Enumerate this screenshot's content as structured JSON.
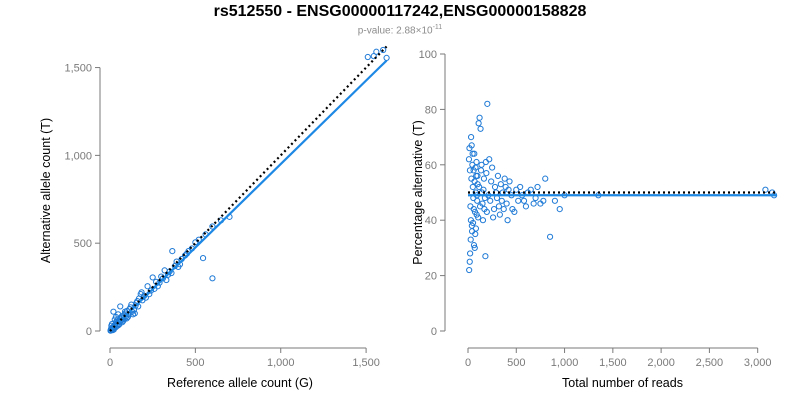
{
  "title": "rs512550 - ENSG00000117242,ENSG00000158828",
  "subtitle": {
    "prefix": "p-value: 2.88×10",
    "exponent": "-11"
  },
  "colors": {
    "point": "#1f7ad6",
    "fit": "#1e88e5",
    "expected": "#000000",
    "axis": "#7a7a7a"
  },
  "chart_data": [
    {
      "type": "scatter",
      "name": "allele-counts",
      "xlabel": "Reference allele count (G)",
      "ylabel": "Alternative allele count (T)",
      "xlim": [
        0,
        1640
      ],
      "ylim": [
        0,
        1600
      ],
      "xticks": [
        0,
        500,
        1000,
        1500
      ],
      "xtick_labels": [
        "0",
        "500",
        "1,000",
        "1,500"
      ],
      "yticks": [
        0,
        500,
        1000,
        1500
      ],
      "ytick_labels": [
        "0",
        "500",
        "1,000",
        "1,500"
      ],
      "fit_line": {
        "x": [
          0,
          1620
        ],
        "y": [
          0,
          1540
        ]
      },
      "expected_line": {
        "x": [
          0,
          1620
        ],
        "y": [
          0,
          1620
        ]
      },
      "points": [
        [
          1510,
          1560
        ],
        [
          1560,
          1590
        ],
        [
          1600,
          1600
        ],
        [
          1620,
          1555
        ],
        [
          1545,
          1565
        ],
        [
          600,
          300
        ],
        [
          700,
          650
        ],
        [
          545,
          415
        ],
        [
          365,
          455
        ],
        [
          330,
          290
        ],
        [
          400,
          365
        ],
        [
          300,
          310
        ],
        [
          250,
          305
        ],
        [
          220,
          255
        ],
        [
          280,
          255
        ],
        [
          170,
          185
        ],
        [
          180,
          210
        ],
        [
          155,
          160
        ],
        [
          200,
          200
        ],
        [
          120,
          135
        ],
        [
          130,
          110
        ],
        [
          100,
          115
        ],
        [
          90,
          100
        ],
        [
          80,
          90
        ],
        [
          70,
          75
        ],
        [
          60,
          70
        ],
        [
          50,
          55
        ],
        [
          40,
          45
        ],
        [
          30,
          30
        ],
        [
          25,
          20
        ],
        [
          20,
          25
        ],
        [
          15,
          10
        ],
        [
          10,
          15
        ],
        [
          5,
          5
        ],
        [
          35,
          50
        ],
        [
          45,
          30
        ],
        [
          55,
          40
        ],
        [
          65,
          60
        ],
        [
          75,
          65
        ],
        [
          85,
          70
        ],
        [
          95,
          85
        ],
        [
          110,
          95
        ],
        [
          140,
          120
        ],
        [
          150,
          145
        ],
        [
          160,
          170
        ],
        [
          190,
          175
        ],
        [
          210,
          190
        ],
        [
          230,
          210
        ],
        [
          260,
          240
        ],
        [
          270,
          280
        ],
        [
          290,
          275
        ],
        [
          310,
          300
        ],
        [
          340,
          320
        ],
        [
          350,
          340
        ],
        [
          380,
          370
        ],
        [
          420,
          410
        ],
        [
          440,
          430
        ],
        [
          460,
          455
        ],
        [
          480,
          470
        ],
        [
          500,
          505
        ],
        [
          20,
          110
        ],
        [
          60,
          140
        ],
        [
          35,
          80
        ],
        [
          12,
          40
        ],
        [
          8,
          30
        ],
        [
          28,
          65
        ],
        [
          48,
          95
        ],
        [
          16,
          5
        ],
        [
          22,
          8
        ],
        [
          3,
          2
        ],
        [
          6,
          12
        ],
        [
          42,
          60
        ],
        [
          52,
          35
        ],
        [
          72,
          50
        ],
        [
          88,
          110
        ],
        [
          105,
          80
        ],
        [
          125,
          150
        ],
        [
          145,
          100
        ],
        [
          165,
          140
        ],
        [
          185,
          220
        ],
        [
          240,
          230
        ],
        [
          320,
          345
        ],
        [
          360,
          330
        ],
        [
          390,
          395
        ],
        [
          410,
          380
        ],
        [
          450,
          440
        ],
        [
          520,
          520
        ],
        [
          560,
          550
        ],
        [
          600,
          595
        ],
        [
          650,
          630
        ],
        [
          18,
          18
        ],
        [
          26,
          32
        ],
        [
          34,
          22
        ],
        [
          44,
          38
        ],
        [
          58,
          52
        ],
        [
          68,
          82
        ],
        [
          78,
          58
        ],
        [
          98,
          72
        ],
        [
          115,
          125
        ],
        [
          135,
          95
        ]
      ]
    },
    {
      "type": "scatter",
      "name": "percentage-alternative",
      "xlabel": "Total number of reads",
      "ylabel": "Percentage alternative (T)",
      "xlim": [
        0,
        3200
      ],
      "ylim": [
        0,
        100
      ],
      "xticks": [
        0,
        500,
        1000,
        1500,
        2000,
        2500,
        3000
      ],
      "xtick_labels": [
        "0",
        "500",
        "1,000",
        "1,500",
        "2,000",
        "2,500",
        "3,000"
      ],
      "yticks": [
        0,
        20,
        40,
        60,
        80,
        100
      ],
      "ytick_labels": [
        "0",
        "20",
        "40",
        "60",
        "80",
        "100"
      ],
      "fit_line": {
        "x": [
          0,
          3200
        ],
        "y": [
          49,
          49
        ]
      },
      "expected_line": {
        "x": [
          0,
          3200
        ],
        "y": [
          50,
          50
        ]
      },
      "points": [
        [
          10,
          62
        ],
        [
          15,
          66
        ],
        [
          20,
          58
        ],
        [
          25,
          45
        ],
        [
          30,
          40
        ],
        [
          35,
          55
        ],
        [
          40,
          38
        ],
        [
          45,
          60
        ],
        [
          50,
          52
        ],
        [
          55,
          48
        ],
        [
          60,
          44
        ],
        [
          65,
          64
        ],
        [
          70,
          30
        ],
        [
          75,
          35
        ],
        [
          80,
          50
        ],
        [
          85,
          56
        ],
        [
          90,
          42
        ],
        [
          95,
          47
        ],
        [
          100,
          53
        ],
        [
          110,
          75
        ],
        [
          120,
          77
        ],
        [
          130,
          73
        ],
        [
          140,
          60
        ],
        [
          150,
          46
        ],
        [
          160,
          51
        ],
        [
          170,
          44
        ],
        [
          180,
          27
        ],
        [
          190,
          57
        ],
        [
          200,
          82
        ],
        [
          210,
          49
        ],
        [
          220,
          62
        ],
        [
          240,
          54
        ],
        [
          260,
          41
        ],
        [
          280,
          52
        ],
        [
          300,
          48
        ],
        [
          320,
          45
        ],
        [
          340,
          53
        ],
        [
          360,
          50
        ],
        [
          380,
          55
        ],
        [
          400,
          46
        ],
        [
          420,
          51
        ],
        [
          450,
          49
        ],
        [
          480,
          43
        ],
        [
          500,
          51
        ],
        [
          520,
          47
        ],
        [
          560,
          49
        ],
        [
          600,
          45
        ],
        [
          650,
          51
        ],
        [
          700,
          48
        ],
        [
          750,
          46
        ],
        [
          800,
          55
        ],
        [
          850,
          34
        ],
        [
          950,
          44
        ],
        [
          1350,
          49
        ],
        [
          3080,
          51
        ],
        [
          3150,
          50
        ],
        [
          3170,
          49
        ],
        [
          12,
          22
        ],
        [
          18,
          25
        ],
        [
          22,
          28
        ],
        [
          28,
          33
        ],
        [
          32,
          70
        ],
        [
          38,
          67
        ],
        [
          42,
          36
        ],
        [
          48,
          64
        ],
        [
          52,
          39
        ],
        [
          58,
          58
        ],
        [
          62,
          31
        ],
        [
          68,
          54
        ],
        [
          72,
          43
        ],
        [
          78,
          59
        ],
        [
          82,
          37
        ],
        [
          88,
          61
        ],
        [
          92,
          49
        ],
        [
          98,
          56
        ],
        [
          105,
          41
        ],
        [
          115,
          52
        ],
        [
          125,
          45
        ],
        [
          135,
          58
        ],
        [
          145,
          50
        ],
        [
          155,
          40
        ],
        [
          165,
          55
        ],
        [
          175,
          48
        ],
        [
          185,
          61
        ],
        [
          195,
          43
        ],
        [
          230,
          47
        ],
        [
          250,
          59
        ],
        [
          270,
          44
        ],
        [
          290,
          50
        ],
        [
          310,
          56
        ],
        [
          330,
          42
        ],
        [
          350,
          47
        ],
        [
          370,
          44
        ],
        [
          390,
          52
        ],
        [
          410,
          40
        ],
        [
          430,
          54
        ],
        [
          460,
          44
        ],
        [
          540,
          52
        ],
        [
          580,
          47
        ],
        [
          620,
          50
        ],
        [
          680,
          46
        ],
        [
          720,
          52
        ],
        [
          780,
          47
        ],
        [
          900,
          47
        ],
        [
          1000,
          49
        ]
      ]
    }
  ]
}
